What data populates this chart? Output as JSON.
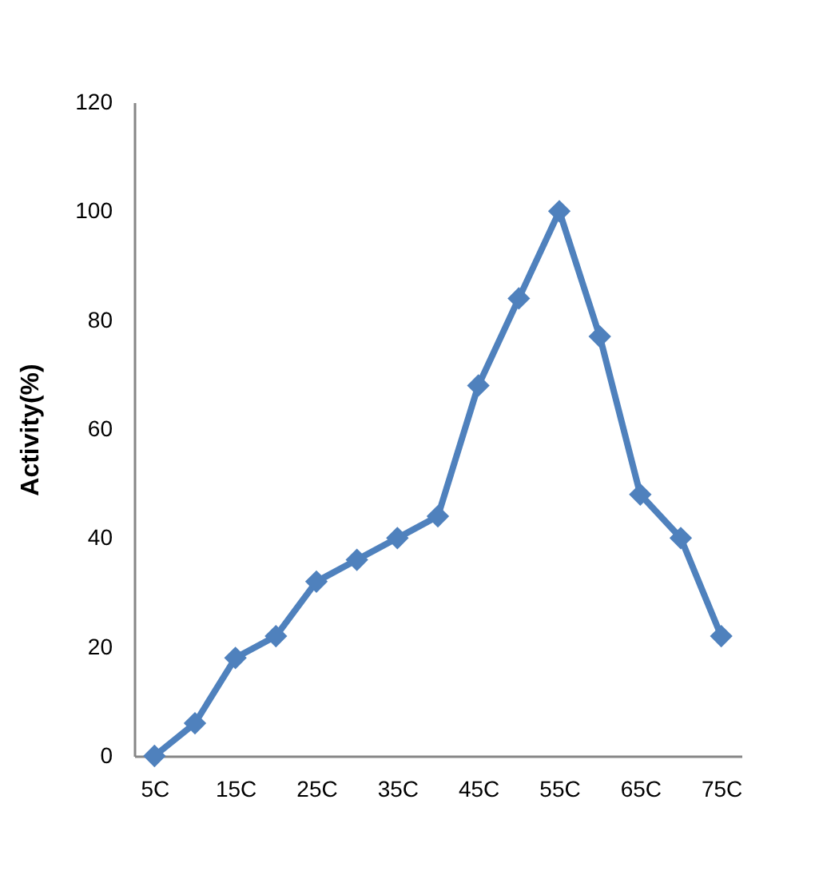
{
  "chart_data": {
    "type": "line",
    "ylabel": "Activity(%)",
    "categories": [
      "5C",
      null,
      "15C",
      null,
      "25C",
      null,
      "35C",
      null,
      "45C",
      null,
      "55C",
      null,
      "65C",
      null,
      "75C"
    ],
    "series": [
      {
        "color": "#4f81bd",
        "values": [
          0,
          6,
          18,
          22,
          32,
          36,
          40,
          44,
          68,
          84,
          100,
          77,
          48,
          40,
          22
        ]
      }
    ],
    "ylim": [
      0,
      120
    ],
    "yticks": [
      0,
      20,
      40,
      60,
      80,
      100,
      120
    ],
    "grid": false,
    "legend": false,
    "marker": "diamond",
    "line_style": "solid"
  }
}
